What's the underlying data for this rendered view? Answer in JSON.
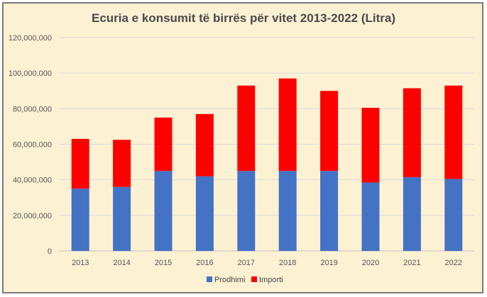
{
  "chart_data": {
    "type": "bar",
    "stacked": true,
    "title": "Ecuria e konsumit të birrës për vitet 2013-2022 (Litra)",
    "categories": [
      "2013",
      "2014",
      "2015",
      "2016",
      "2017",
      "2018",
      "2019",
      "2020",
      "2021",
      "2022"
    ],
    "series": [
      {
        "name": "Prodhimi",
        "color": "#4472c4",
        "values": [
          35000000,
          36000000,
          45000000,
          42000000,
          45000000,
          45000000,
          45000000,
          38500000,
          41500000,
          40500000
        ]
      },
      {
        "name": "Importi",
        "color": "#ff0000",
        "values": [
          28000000,
          26500000,
          30000000,
          35000000,
          48000000,
          52000000,
          45000000,
          42000000,
          50000000,
          52500000
        ]
      }
    ],
    "ylim": [
      0,
      120000000
    ],
    "yticks": [
      "0",
      "20,000,000",
      "40,000,000",
      "60,000,000",
      "80,000,000",
      "100,000,000",
      "120,000,000"
    ],
    "grid": true,
    "legend": "bottom"
  }
}
